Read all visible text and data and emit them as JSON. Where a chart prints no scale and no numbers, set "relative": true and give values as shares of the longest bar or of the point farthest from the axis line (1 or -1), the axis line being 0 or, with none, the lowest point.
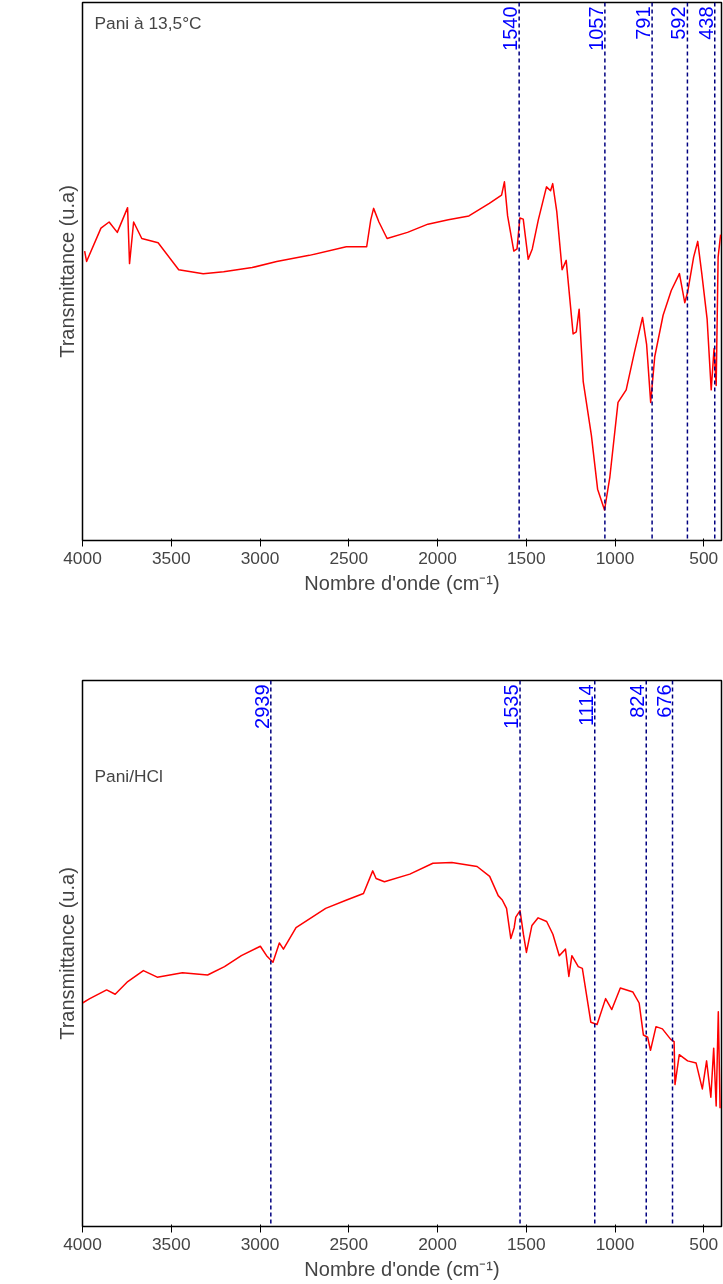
{
  "chart_data": [
    {
      "type": "line",
      "relative": true,
      "xlabel": "Nombre d'onde (cm⁻¹)",
      "ylabel": "Transmittance (u.a)",
      "annotations": [
        "Pani à 13,5°C"
      ],
      "xlim": [
        4000,
        400
      ],
      "xticks": [
        4000,
        3500,
        3000,
        2500,
        2000,
        1500,
        1000,
        500
      ],
      "tick_labels": "x",
      "grid": false,
      "series": [
        {
          "color": "#ff0000",
          "x": [
            3988,
            3977,
            3896,
            3850,
            3804,
            3746,
            3735,
            3712,
            3666,
            3574,
            3458,
            3320,
            3205,
            3044,
            2906,
            2722,
            2514,
            2399,
            2376,
            2360,
            2330,
            2284,
            2169,
            2054,
            1939,
            1823,
            1708,
            1639,
            1623,
            1605,
            1570,
            1552,
            1536,
            1517,
            1489,
            1466,
            1432,
            1386,
            1363,
            1351,
            1328,
            1298,
            1275,
            1236,
            1218,
            1202,
            1179,
            1133,
            1098,
            1059,
            1029,
            983,
            937,
            891,
            845,
            822,
            799,
            776,
            729,
            683,
            637,
            607,
            591,
            557,
            534,
            511,
            481,
            458,
            442,
            430,
            419,
            405
          ],
          "values": [
            0.807,
            0.778,
            0.871,
            0.888,
            0.859,
            0.928,
            0.772,
            0.888,
            0.842,
            0.83,
            0.755,
            0.744,
            0.749,
            0.761,
            0.778,
            0.795,
            0.819,
            0.819,
            0.894,
            0.926,
            0.888,
            0.842,
            0.859,
            0.882,
            0.894,
            0.905,
            0.94,
            0.963,
            1.0,
            0.905,
            0.807,
            0.813,
            0.899,
            0.896,
            0.784,
            0.813,
            0.894,
            0.986,
            0.975,
            0.995,
            0.917,
            0.755,
            0.781,
            0.576,
            0.582,
            0.645,
            0.443,
            0.293,
            0.143,
            0.085,
            0.177,
            0.385,
            0.42,
            0.524,
            0.622,
            0.547,
            0.385,
            0.513,
            0.628,
            0.697,
            0.744,
            0.663,
            0.692,
            0.79,
            0.834,
            0.744,
            0.617,
            0.42,
            0.535,
            0.432,
            0.79,
            0.853
          ]
        }
      ],
      "ref_lines": [
        {
          "axis": "x",
          "value": 1540,
          "label": "1540",
          "color": "#000080",
          "line_style": "dashed"
        },
        {
          "axis": "x",
          "value": 1057,
          "label": "1057",
          "color": "#000080",
          "line_style": "dashed"
        },
        {
          "axis": "x",
          "value": 791,
          "label": "791",
          "color": "#000080",
          "line_style": "dashed"
        },
        {
          "axis": "x",
          "value": 592,
          "label": "592",
          "color": "#000080",
          "line_style": "dashed"
        },
        {
          "axis": "x",
          "value": 438,
          "label": "438",
          "color": "#000080",
          "line_style": "dashed"
        }
      ]
    },
    {
      "type": "line",
      "relative": true,
      "xlabel": "Nombre d'onde (cm⁻¹)",
      "ylabel": "Transmittance (u.a)",
      "annotations": [
        "Pani/HCl"
      ],
      "xlim": [
        4000,
        400
      ],
      "xticks": [
        4000,
        3500,
        3000,
        2500,
        2000,
        1500,
        1000,
        500
      ],
      "tick_labels": "x",
      "grid": false,
      "series": [
        {
          "color": "#ff0000",
          "x": [
            4000,
            3959,
            3864,
            3816,
            3745,
            3657,
            3579,
            3437,
            3295,
            3200,
            3105,
            2998,
            2963,
            2927,
            2891,
            2868,
            2797,
            2630,
            2512,
            2417,
            2365,
            2346,
            2299,
            2156,
            2026,
            1919,
            1777,
            1706,
            1658,
            1635,
            1611,
            1587,
            1568,
            1559,
            1535,
            1516,
            1499,
            1468,
            1433,
            1385,
            1350,
            1314,
            1279,
            1260,
            1243,
            1207,
            1184,
            1136,
            1101,
            1053,
            1018,
            970,
            899,
            864,
            840,
            816,
            800,
            769,
            733,
            686,
            667,
            662,
            638,
            591,
            543,
            508,
            484,
            460,
            444,
            430,
            418,
            408
          ],
          "values": [
            0.614,
            0.626,
            0.65,
            0.638,
            0.673,
            0.703,
            0.685,
            0.697,
            0.691,
            0.714,
            0.744,
            0.77,
            0.744,
            0.726,
            0.779,
            0.762,
            0.821,
            0.874,
            0.897,
            0.915,
            0.977,
            0.956,
            0.947,
            0.968,
            0.998,
            1.0,
            0.989,
            0.962,
            0.909,
            0.897,
            0.874,
            0.791,
            0.821,
            0.85,
            0.868,
            0.803,
            0.753,
            0.827,
            0.848,
            0.838,
            0.803,
            0.744,
            0.762,
            0.687,
            0.744,
            0.714,
            0.709,
            0.561,
            0.555,
            0.626,
            0.596,
            0.655,
            0.644,
            0.614,
            0.526,
            0.52,
            0.484,
            0.549,
            0.543,
            0.514,
            0.508,
            0.39,
            0.472,
            0.455,
            0.449,
            0.378,
            0.455,
            0.355,
            0.49,
            0.331,
            0.59,
            0.325
          ]
        }
      ],
      "ref_lines": [
        {
          "axis": "x",
          "value": 2939,
          "label": "2939",
          "color": "#000080",
          "line_style": "dashed"
        },
        {
          "axis": "x",
          "value": 1535,
          "label": "1535",
          "color": "#000080",
          "line_style": "dashed"
        },
        {
          "axis": "x",
          "value": 1114,
          "label": "1114",
          "color": "#000080",
          "line_style": "dashed"
        },
        {
          "axis": "x",
          "value": 824,
          "label": "824",
          "color": "#000080",
          "line_style": "dashed"
        },
        {
          "axis": "x",
          "value": 676,
          "label": "676",
          "color": "#000080",
          "line_style": "dashed"
        }
      ]
    }
  ]
}
